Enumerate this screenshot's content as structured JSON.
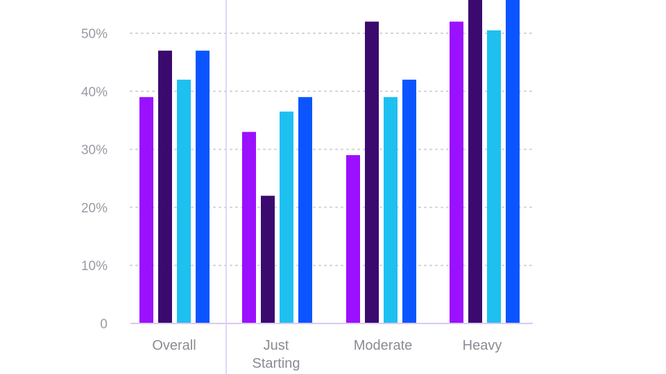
{
  "chart_data": {
    "type": "bar",
    "categories": [
      {
        "lines": [
          "Overall"
        ]
      },
      {
        "lines": [
          "Just",
          "Starting"
        ]
      },
      {
        "lines": [
          "Moderate"
        ]
      },
      {
        "lines": [
          "Heavy"
        ]
      }
    ],
    "series": [
      {
        "color": "#9b10ff",
        "values": [
          39,
          33,
          29,
          52
        ]
      },
      {
        "color": "#3a0a6e",
        "values": [
          47,
          22,
          52,
          56
        ]
      },
      {
        "color": "#1ec0f0",
        "values": [
          42,
          36.5,
          39,
          50.5
        ]
      },
      {
        "color": "#0a55ff",
        "values": [
          47,
          39,
          42,
          56
        ]
      }
    ],
    "y_ticks": [
      "0",
      "10%",
      "20%",
      "30%",
      "40%",
      "50%"
    ],
    "y_tick_values": [
      0,
      10,
      20,
      30,
      40,
      50
    ],
    "ylim": [
      0,
      55
    ],
    "grid": true,
    "grid_style": "dotted",
    "axis_color": "#d9c8f5",
    "grid_color": "#d0d0d6"
  }
}
